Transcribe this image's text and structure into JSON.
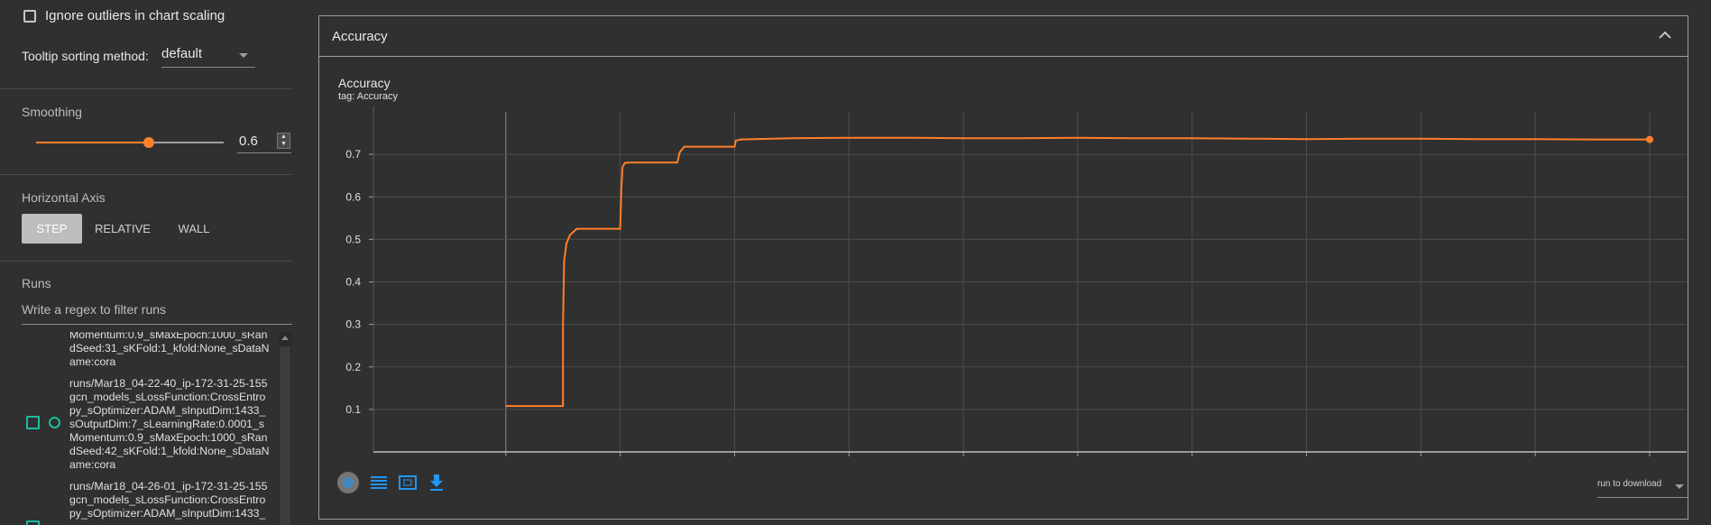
{
  "settings": {
    "ignore_outliers_label": "Ignore outliers in chart scaling",
    "tooltip_sort_label": "Tooltip sorting method:",
    "tooltip_sort_value": "default"
  },
  "smoothing": {
    "title": "Smoothing",
    "value": "0.6",
    "fraction": 0.6
  },
  "horizontal_axis": {
    "title": "Horizontal Axis",
    "options": [
      "STEP",
      "RELATIVE",
      "WALL"
    ],
    "selected": "STEP"
  },
  "runs": {
    "title": "Runs",
    "filter_placeholder": "Write a regex to filter runs",
    "items": [
      {
        "text": "Momentum:0.9_sMaxEpoch:1000_sRan\ndSeed:31_sKFold:1_kfold:None_sDataN\name:cora"
      },
      {
        "text": "runs/Mar18_04-22-40_ip-172-31-25-155\ngcn_models_sLossFunction:CrossEntro\npy_sOptimizer:ADAM_sInputDim:1433_\nsOutputDim:7_sLearningRate:0.0001_s\nMomentum:0.9_sMaxEpoch:1000_sRan\ndSeed:42_sKFold:1_kfold:None_sDataN\name:cora"
      },
      {
        "text": "runs/Mar18_04-26-01_ip-172-31-25-155\ngcn_models_sLossFunction:CrossEntro\npy_sOptimizer:ADAM_sInputDim:1433_"
      }
    ]
  },
  "card": {
    "title": "Accuracy",
    "chart_title": "Accuracy",
    "chart_tag": "tag: Accuracy",
    "download_label": "run to download"
  },
  "colors": {
    "accent": "#ff7f2a",
    "run": "#1abc9c",
    "background": "#303030"
  },
  "icons": [
    "checkbox-icon",
    "chevron-down-icon",
    "chevron-up-icon",
    "fit-domain-icon",
    "log-scale-icon",
    "select-zoom-icon",
    "download-icon"
  ],
  "chart_data": {
    "type": "line",
    "title": "Accuracy",
    "ylim": [
      0,
      0.8
    ],
    "yticks": [
      0.1,
      0.2,
      0.3,
      0.4,
      0.5,
      0.6,
      0.7
    ],
    "grid": true,
    "series": [
      {
        "x": [
          0,
          50,
          50,
          51,
          53,
          56,
          62,
          100,
          101,
          102,
          104,
          110,
          150,
          152,
          156,
          200,
          201,
          205,
          250,
          300,
          350,
          400,
          450,
          500,
          550,
          600,
          650,
          700,
          750,
          800,
          850,
          900,
          950,
          1000
        ],
        "y": [
          0.108,
          0.108,
          0.3,
          0.45,
          0.49,
          0.51,
          0.525,
          0.525,
          0.62,
          0.67,
          0.68,
          0.681,
          0.681,
          0.705,
          0.718,
          0.718,
          0.732,
          0.735,
          0.738,
          0.739,
          0.739,
          0.738,
          0.738,
          0.739,
          0.738,
          0.738,
          0.737,
          0.736,
          0.737,
          0.737,
          0.736,
          0.736,
          0.735,
          0.735
        ]
      }
    ]
  }
}
